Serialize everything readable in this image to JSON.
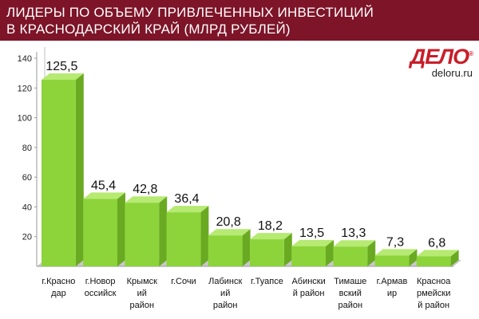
{
  "header": {
    "title_line1": "ЛИДЕРЫ ПО ОБЪЕМУ ПРИВЛЕЧЕННЫХ ИНВЕСТИЦИЙ",
    "title_line2": "В КРАСНОДАРСКИЙ КРАЙ (МЛРД РУБЛЕЙ)"
  },
  "logo": {
    "mark": "ДЕЛО",
    "registered": "®",
    "url": "deloru.ru"
  },
  "colors": {
    "header_bg": "#7d1428",
    "bar_front": "#8cd43a",
    "bar_side": "#6aa922",
    "bar_top": "#b6ea72",
    "floor": "#c8c8c8"
  },
  "chart_data": {
    "type": "bar",
    "title": "ЛИДЕРЫ ПО ОБЪЕМУ ПРИВЛЕЧЕННЫХ ИНВЕСТИЦИЙ В КРАСНОДАРСКИЙ КРАЙ (МЛРД РУБЛЕЙ)",
    "categories": [
      [
        "г.Красно",
        "дар"
      ],
      [
        "г.Новор",
        "оссийск"
      ],
      [
        "Крымск",
        "ий",
        "район"
      ],
      [
        "г.Сочи"
      ],
      [
        "Лабинск",
        "ий",
        "район"
      ],
      [
        "г.Туапсе"
      ],
      [
        "Абински",
        "й район"
      ],
      [
        "Тимаше",
        "вский",
        "район"
      ],
      [
        "г.Армав",
        "ир"
      ],
      [
        "Красноа",
        "рмейски",
        "й район"
      ]
    ],
    "values": [
      125.5,
      45.4,
      42.8,
      36.4,
      20.8,
      18.2,
      13.5,
      13.3,
      7.3,
      6.8
    ],
    "value_labels": [
      "125,5",
      "45,4",
      "42,8",
      "36,4",
      "20,8",
      "18,2",
      "13,5",
      "13,3",
      "7,3",
      "6,8"
    ],
    "yticks": [
      "20",
      "40",
      "60",
      "80",
      "100",
      "120",
      "140"
    ],
    "ytick_values": [
      20,
      40,
      60,
      80,
      100,
      120,
      140
    ],
    "ylim": [
      0,
      140
    ],
    "grid": false,
    "legend": "none",
    "style": "3d"
  }
}
